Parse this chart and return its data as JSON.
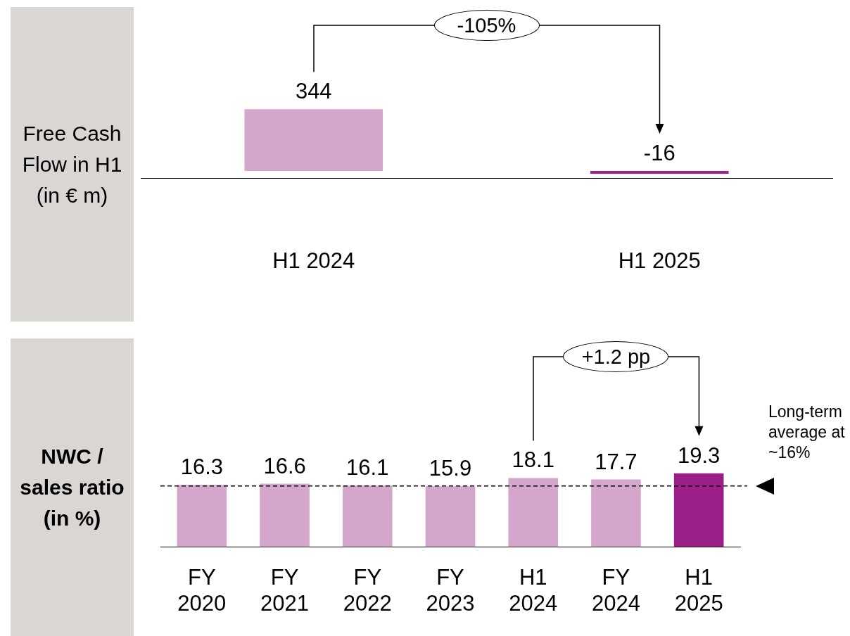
{
  "chart_data": [
    {
      "type": "bar",
      "ylabel": "Free Cash Flow in H1 (in € m)",
      "categories": [
        "H1 2024",
        "H1 2025"
      ],
      "values": [
        344,
        -16
      ],
      "colors": [
        "#d5a6cc",
        "#a3228c"
      ],
      "data_labels": true,
      "annotations": [
        "-105%"
      ]
    },
    {
      "type": "bar",
      "ylabel": "NWC / sales ratio (in %)",
      "categories": [
        "FY 2020",
        "FY 2021",
        "FY 2022",
        "FY 2023",
        "H1 2024",
        "FY 2024",
        "H1 2025"
      ],
      "values": [
        16.3,
        16.6,
        16.1,
        15.9,
        18.1,
        17.7,
        19.3
      ],
      "colors": [
        "#d5a6cc",
        "#d5a6cc",
        "#d5a6cc",
        "#d5a6cc",
        "#d5a6cc",
        "#d5a6cc",
        "#9c1f87"
      ],
      "data_labels": true,
      "annotations": [
        "+1.2 pp"
      ],
      "ref_lines": [
        {
          "axis": "y",
          "value": 16,
          "label": "Long-term average at ~16%",
          "line_style": "dashed",
          "color": "#000000"
        }
      ]
    }
  ]
}
